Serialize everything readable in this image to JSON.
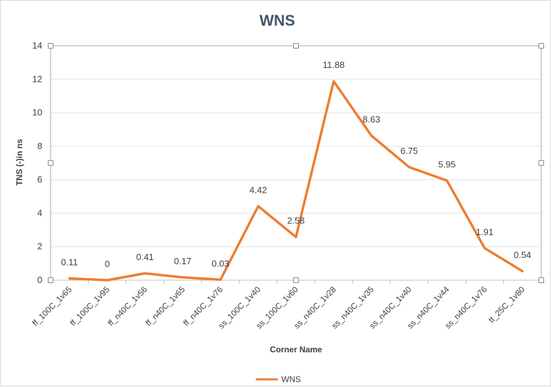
{
  "chart_data": {
    "type": "line",
    "title": "WNS",
    "xlabel": "Corner Name",
    "ylabel": "TNS (-)in ns",
    "ylim": [
      0,
      14
    ],
    "yticks": [
      0,
      2,
      4,
      6,
      8,
      10,
      12,
      14
    ],
    "grid": true,
    "legend_position": "bottom",
    "categories": [
      "ff_100C_1v65",
      "ff_100C_1v95",
      "ff_n40C_1v56",
      "ff_n40C_1v65",
      "ff_n40C_1v76",
      "ss_100C_1v40",
      "ss_100C_1v60",
      "ss_n40C_1v28",
      "ss_n40C_1v35",
      "ss_n40C_1v40",
      "ss_n40C_1v44",
      "ss_n40C_1v76",
      "tt_25C_1v80"
    ],
    "series": [
      {
        "name": "WNS",
        "color": "#ed7d31",
        "values": [
          0.11,
          0,
          0.41,
          0.17,
          0.03,
          4.42,
          2.58,
          11.88,
          8.63,
          6.75,
          5.95,
          1.91,
          0.54
        ],
        "labels": [
          "0.11",
          "0",
          "0.41",
          "0.17",
          "0.03",
          "4.42",
          "2.58",
          "11.88",
          "8.63",
          "6.75",
          "5.95",
          "1.91",
          "0.54"
        ]
      }
    ]
  }
}
